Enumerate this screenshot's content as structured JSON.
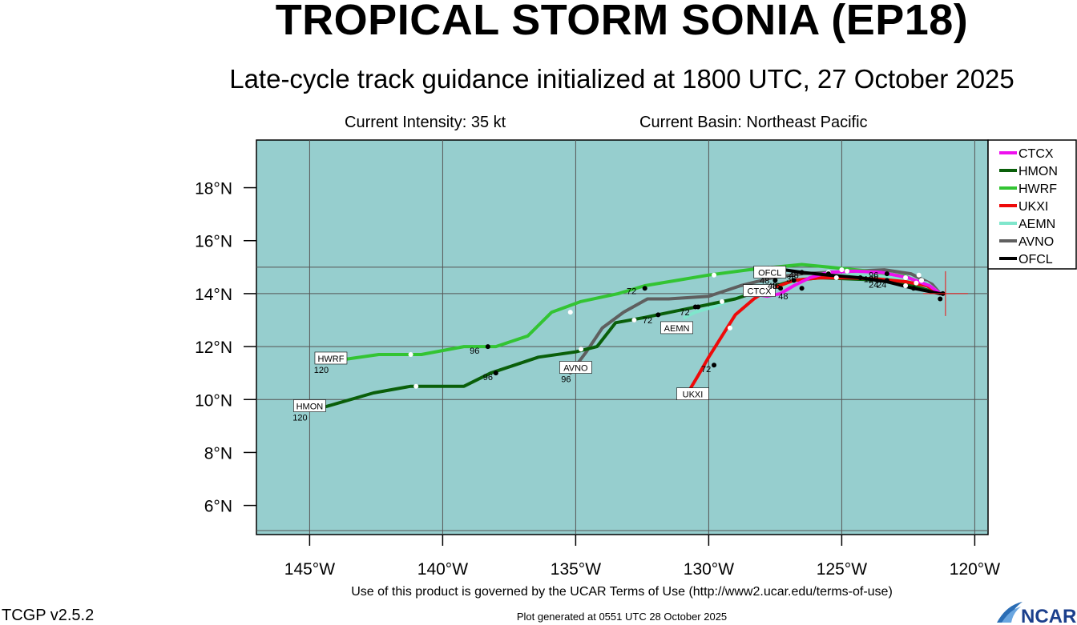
{
  "title": "TROPICAL STORM SONIA (EP18)",
  "subtitle": "Late-cycle track guidance initialized at 1800 UTC, 27 October 2025",
  "current_intensity": "Current Intensity: 35 kt",
  "current_basin": "Current Basin: Northeast Pacific",
  "terms": "Use of this product is governed by the UCAR Terms of Use (http://www2.ucar.edu/terms-of-use)",
  "version": "TCGP v2.5.2",
  "generated": "Plot generated at 0551 UTC   28 October 2025",
  "logo_text": "NCAR",
  "map": {
    "background": "#96CECE",
    "lon_range": [
      -147,
      -119.5
    ],
    "lat_range": [
      4.9,
      19.8
    ],
    "lon_ticks": [
      -145,
      -140,
      -135,
      -130,
      -125,
      -120
    ],
    "lon_tick_labels": [
      "145°W",
      "140°W",
      "135°W",
      "130°W",
      "125°W",
      "120°W"
    ],
    "lat_ticks": [
      6,
      8,
      10,
      12,
      14,
      16,
      18
    ],
    "lat_tick_labels": [
      "6°N",
      "8°N",
      "10°N",
      "12°N",
      "14°N",
      "16°N",
      "18°N"
    ],
    "grid_lons": [
      -145,
      -140,
      -135,
      -130,
      -125,
      -120
    ],
    "grid_lats": [
      10,
      12,
      14,
      15
    ],
    "initial_position": [
      -121.1,
      14.0
    ]
  },
  "legend": [
    {
      "name": "CTCX",
      "color": "#EE11EE"
    },
    {
      "name": "HMON",
      "color": "#0A5F0A"
    },
    {
      "name": "HWRF",
      "color": "#33C433"
    },
    {
      "name": "UKXI",
      "color": "#EE0A0A"
    },
    {
      "name": "AEMN",
      "color": "#7FE6CC"
    },
    {
      "name": "AVNO",
      "color": "#5F5F5F"
    },
    {
      "name": "OFCL",
      "color": "#000000"
    }
  ],
  "tracks": [
    {
      "name": "AVNO",
      "color": "#5F5F5F",
      "points": [
        [
          -121.3,
          14.0
        ],
        [
          -121.6,
          14.35
        ],
        [
          -122.4,
          14.75
        ],
        [
          -123.4,
          14.9
        ],
        [
          -124.5,
          14.85
        ],
        [
          -125.5,
          14.8
        ],
        [
          -126.5,
          14.75
        ],
        [
          -127.6,
          14.6
        ],
        [
          -128.8,
          14.3
        ],
        [
          -130.0,
          13.9
        ],
        [
          -131.5,
          13.8
        ],
        [
          -132.3,
          13.8
        ],
        [
          -133.2,
          13.3
        ],
        [
          -134.0,
          12.7
        ],
        [
          -134.6,
          11.8
        ],
        [
          -135.2,
          11.0
        ]
      ],
      "dots": [
        [
          -127.5,
          14.5
        ],
        [
          -132.8,
          13.0
        ]
      ],
      "white_dots": [
        [
          -122.1,
          14.7
        ],
        [
          -125.5,
          14.8
        ]
      ],
      "labels": [],
      "box": {
        "text": "AVNO",
        "lon": -135.0,
        "lat": 11.2
      },
      "end_hour": "96"
    },
    {
      "name": "AEMN",
      "color": "#7FE6CC",
      "points": [
        [
          -121.3,
          14.0
        ],
        [
          -121.8,
          14.4
        ],
        [
          -122.8,
          14.6
        ],
        [
          -124.0,
          14.65
        ],
        [
          -125.2,
          14.7
        ],
        [
          -126.4,
          14.55
        ],
        [
          -127.6,
          14.2
        ],
        [
          -128.8,
          13.9
        ],
        [
          -129.8,
          13.5
        ],
        [
          -130.5,
          13.3
        ],
        [
          -130.9,
          13.1
        ]
      ],
      "dots": [
        [
          -127.6,
          14.2
        ],
        [
          -130.5,
          13.5
        ]
      ],
      "white_dots": [
        [
          -122.6,
          14.6
        ]
      ],
      "labels": [
        {
          "text": "72",
          "lon": -130.9,
          "lat": 13.3
        }
      ],
      "box": {
        "text": "AEMN",
        "lon": -131.2,
        "lat": 12.7
      },
      "end_hour": ""
    },
    {
      "name": "HMON",
      "color": "#0A5F0A",
      "points": [
        [
          -121.3,
          14.0
        ],
        [
          -122.0,
          14.2
        ],
        [
          -123.2,
          14.5
        ],
        [
          -124.5,
          14.55
        ],
        [
          -125.8,
          14.6
        ],
        [
          -126.8,
          14.5
        ],
        [
          -127.8,
          14.2
        ],
        [
          -129.0,
          13.8
        ],
        [
          -130.2,
          13.55
        ],
        [
          -131.2,
          13.35
        ],
        [
          -132.4,
          13.1
        ],
        [
          -133.5,
          12.9
        ],
        [
          -134.2,
          12.0
        ],
        [
          -135.0,
          11.8
        ],
        [
          -136.4,
          11.6
        ],
        [
          -138.2,
          11.0
        ],
        [
          -139.2,
          10.5
        ],
        [
          -141.2,
          10.5
        ],
        [
          -142.6,
          10.25
        ],
        [
          -144.5,
          9.7
        ],
        [
          -145.2,
          9.65
        ]
      ],
      "dots": [
        [
          -127.3,
          14.2
        ],
        [
          -130.4,
          13.5
        ],
        [
          -131.9,
          13.2
        ],
        [
          -138.0,
          11.0
        ]
      ],
      "white_dots": [
        [
          -122.6,
          14.3
        ],
        [
          -129.5,
          13.7
        ],
        [
          -132.8,
          13.0
        ],
        [
          -134.8,
          11.9
        ],
        [
          -141.0,
          10.5
        ]
      ],
      "labels": [
        {
          "text": "72",
          "lon": -132.3,
          "lat": 13.0
        },
        {
          "text": "96",
          "lon": -138.3,
          "lat": 10.85
        }
      ],
      "box": {
        "text": "HMON",
        "lon": -145.0,
        "lat": 9.75
      },
      "end_hour": "120"
    },
    {
      "name": "HWRF",
      "color": "#33C433",
      "points": [
        [
          -121.3,
          14.0
        ],
        [
          -121.8,
          14.3
        ],
        [
          -122.6,
          14.65
        ],
        [
          -124.0,
          14.85
        ],
        [
          -125.5,
          15.0
        ],
        [
          -126.5,
          15.1
        ],
        [
          -127.5,
          15.0
        ],
        [
          -128.5,
          14.9
        ],
        [
          -130.0,
          14.7
        ],
        [
          -131.2,
          14.5
        ],
        [
          -132.4,
          14.3
        ],
        [
          -133.4,
          14.0
        ],
        [
          -134.8,
          13.7
        ],
        [
          -135.9,
          13.3
        ],
        [
          -136.8,
          12.4
        ],
        [
          -138.0,
          12.0
        ],
        [
          -139.2,
          12.0
        ],
        [
          -140.8,
          11.7
        ],
        [
          -141.6,
          11.7
        ],
        [
          -142.4,
          11.7
        ],
        [
          -143.8,
          11.5
        ],
        [
          -144.6,
          11.5
        ]
      ],
      "dots": [
        [
          -126.5,
          14.8
        ],
        [
          -132.4,
          14.2
        ],
        [
          -138.3,
          12.0
        ]
      ],
      "white_dots": [
        [
          -122.0,
          14.5
        ],
        [
          -125.0,
          14.9
        ],
        [
          -129.8,
          14.7
        ],
        [
          -135.2,
          13.3
        ],
        [
          -141.2,
          11.7
        ]
      ],
      "labels": [
        {
          "text": "72",
          "lon": -132.9,
          "lat": 14.1
        },
        {
          "text": "96",
          "lon": -138.8,
          "lat": 11.85
        }
      ],
      "box": {
        "text": "HWRF",
        "lon": -144.2,
        "lat": 11.55
      },
      "end_hour": "120"
    },
    {
      "name": "UKXI",
      "color": "#EE0A0A",
      "points": [
        [
          -121.3,
          14.0
        ],
        [
          -121.8,
          14.3
        ],
        [
          -122.6,
          14.45
        ],
        [
          -123.6,
          14.55
        ],
        [
          -124.7,
          14.6
        ],
        [
          -125.8,
          14.6
        ],
        [
          -126.8,
          14.5
        ],
        [
          -127.6,
          14.2
        ],
        [
          -128.0,
          14.0
        ],
        [
          -128.3,
          13.8
        ],
        [
          -129.0,
          13.2
        ],
        [
          -129.5,
          12.4
        ],
        [
          -130.0,
          11.6
        ],
        [
          -130.4,
          10.9
        ],
        [
          -130.7,
          10.4
        ]
      ],
      "dots": [
        [
          -126.8,
          14.5
        ],
        [
          -129.8,
          11.3
        ]
      ],
      "white_dots": [
        [
          -122.2,
          14.4
        ],
        [
          -125.2,
          14.6
        ],
        [
          -129.2,
          12.7
        ]
      ],
      "labels": [
        {
          "text": "72",
          "lon": -130.1,
          "lat": 11.15
        }
      ],
      "box": {
        "text": "UKXI",
        "lon": -130.6,
        "lat": 10.2
      },
      "end_hour": ""
    },
    {
      "name": "CTCX",
      "color": "#EE11EE",
      "points": [
        [
          -121.3,
          14.0
        ],
        [
          -121.7,
          14.3
        ],
        [
          -122.5,
          14.6
        ],
        [
          -123.5,
          14.8
        ],
        [
          -124.5,
          14.85
        ],
        [
          -125.5,
          14.8
        ],
        [
          -126.2,
          14.6
        ],
        [
          -126.8,
          14.3
        ],
        [
          -127.3,
          14.0
        ],
        [
          -127.8,
          13.9
        ],
        [
          -128.1,
          13.95
        ]
      ],
      "dots": [
        [
          -126.5,
          14.2
        ]
      ],
      "white_dots": [
        [
          -122.0,
          14.5
        ],
        [
          -124.8,
          14.85
        ]
      ],
      "labels": [
        {
          "text": "48",
          "lon": -127.2,
          "lat": 13.9
        }
      ],
      "box": {
        "text": "CTCX",
        "lon": -128.1,
        "lat": 14.1
      },
      "end_hour": ""
    },
    {
      "name": "OFCL",
      "color": "#000000",
      "points": [
        [
          -121.3,
          14.0
        ],
        [
          -122.3,
          14.2
        ],
        [
          -123.3,
          14.45
        ],
        [
          -124.3,
          14.6
        ],
        [
          -125.5,
          14.7
        ],
        [
          -126.5,
          14.8
        ],
        [
          -127.5,
          14.95
        ]
      ],
      "dots": [
        [
          -121.3,
          13.8
        ],
        [
          -121.2,
          14.0
        ],
        [
          -122.3,
          14.2
        ],
        [
          -123.3,
          14.5
        ],
        [
          -123.3,
          14.75
        ],
        [
          -124.3,
          14.6
        ],
        [
          -125.5,
          14.75
        ],
        [
          -126.5,
          14.8
        ],
        [
          -127.4,
          14.95
        ]
      ],
      "white_dots": [],
      "labels": [
        {
          "text": "24",
          "lon": -123.8,
          "lat": 14.35
        },
        {
          "text": "24",
          "lon": -123.5,
          "lat": 14.35
        },
        {
          "text": "120",
          "lon": -123.9,
          "lat": 14.55
        },
        {
          "text": "96",
          "lon": -123.8,
          "lat": 14.7
        },
        {
          "text": "48",
          "lon": -126.8,
          "lat": 14.7
        },
        {
          "text": "36",
          "lon": -126.9,
          "lat": 14.55
        },
        {
          "text": "48",
          "lon": -127.9,
          "lat": 14.5
        },
        {
          "text": "48",
          "lon": -127.6,
          "lat": 14.3
        },
        {
          "text": "48",
          "lon": -127.7,
          "lat": 14.95
        },
        {
          "text": "46",
          "lon": -127.5,
          "lat": 14.3
        }
      ],
      "box": {
        "text": "OFCL",
        "lon": -127.7,
        "lat": 14.8
      },
      "end_hour": ""
    }
  ]
}
